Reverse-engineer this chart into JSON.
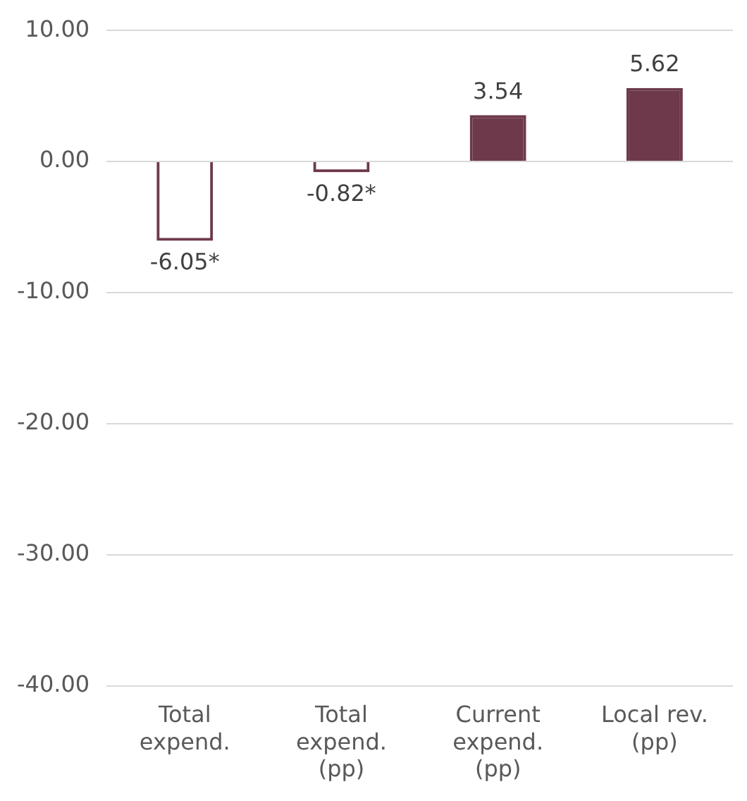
{
  "chart_data": {
    "type": "bar",
    "categories": [
      "Total expend.",
      "Total expend. (pp)",
      "Current expend. (pp)",
      "Local rev. (pp)"
    ],
    "values": [
      -6.05,
      -0.82,
      3.54,
      5.62
    ],
    "value_labels": [
      "-6.05*",
      "-0.82*",
      "3.54",
      "5.62"
    ],
    "colors": [
      "#6e3a4b",
      "#6e3a4b",
      "#6e3a4b",
      "#6e3a4b"
    ],
    "ylim": [
      -40,
      10
    ],
    "yticks": [
      {
        "value": -40,
        "label": "-40.00"
      },
      {
        "value": -30,
        "label": "-30.00"
      },
      {
        "value": -20,
        "label": "-20.00"
      },
      {
        "value": -10,
        "label": "-10.00"
      },
      {
        "value": 0,
        "label": "0.00"
      },
      {
        "value": 10,
        "label": "10.00"
      }
    ],
    "grid": "y",
    "legend": false
  }
}
